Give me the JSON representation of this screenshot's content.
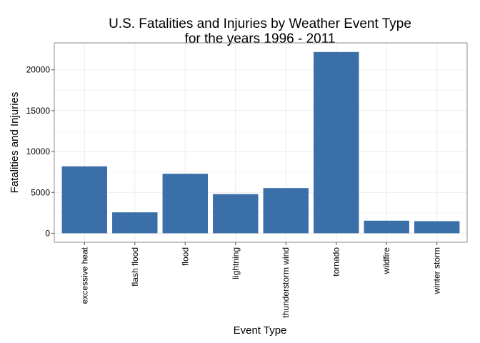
{
  "chart_data": {
    "type": "bar",
    "title": "U.S. Fatalities and Injuries by Weather Event Type",
    "subtitle": "for the years 1996 - 2011",
    "xlabel": "Event Type",
    "ylabel": "Fatalities and Injuries",
    "categories": [
      "excessive heat",
      "flash flood",
      "flood",
      "lightning",
      "thunderstorm wind",
      "tornado",
      "wildfire",
      "winter storm"
    ],
    "values": [
      8190,
      2560,
      7280,
      4790,
      5530,
      22180,
      1540,
      1480
    ],
    "ylim": [
      -1100,
      23300
    ],
    "yticks": [
      0,
      5000,
      10000,
      15000,
      20000
    ],
    "ytick_labels": [
      "0",
      "5000",
      "10000",
      "15000",
      "20000"
    ],
    "grid": true,
    "colors": {
      "bar": "#3a6fa8",
      "grid": "#ebebeb",
      "panel_border": "#8c8c8c",
      "tick": "#4d4d4d"
    }
  }
}
